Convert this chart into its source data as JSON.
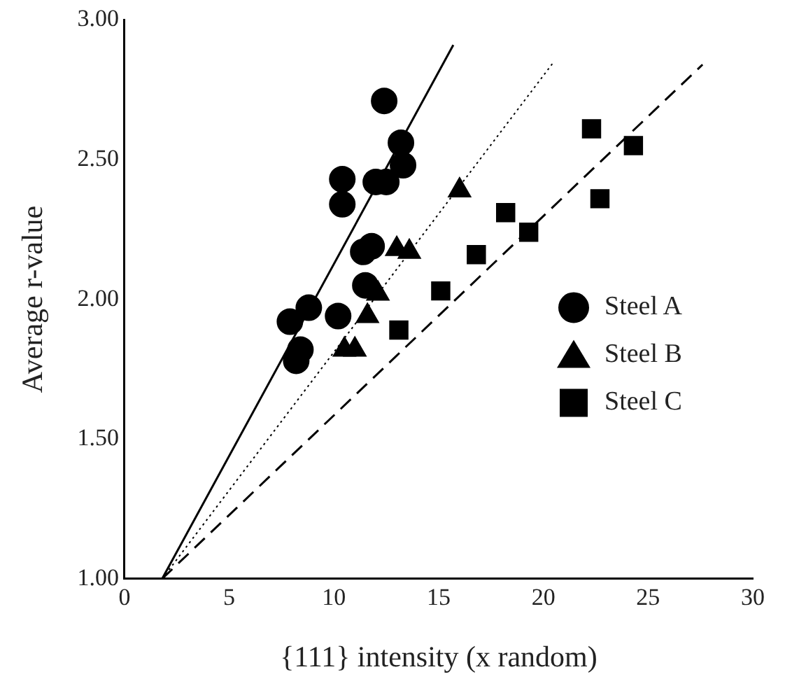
{
  "chart_data": {
    "type": "scatter",
    "xlabel": "{111} intensity (x random)",
    "ylabel": "Average r-value",
    "xlim": [
      0,
      30
    ],
    "xticks": [
      0,
      5,
      10,
      15,
      20,
      25,
      30
    ],
    "ylim": [
      1,
      3
    ],
    "yticks": [
      {
        "value": 1,
        "label": "1.00"
      },
      {
        "value": 1.5,
        "label": "1.50"
      },
      {
        "value": 2,
        "label": "2.00"
      },
      {
        "value": 2.5,
        "label": "2.50"
      },
      {
        "value": 3,
        "label": "3.00"
      }
    ],
    "grid": false,
    "legend": "right",
    "series": [
      {
        "name": "Steel A",
        "color": "#000000",
        "marker": "circle",
        "x": [
          12.4,
          13.2,
          13.3,
          10.4,
          10.4,
          12.0,
          12.5,
          11.8,
          11.4,
          11.5,
          8.8,
          7.9,
          10.2,
          8.4,
          8.2
        ],
        "values": [
          2.71,
          2.56,
          2.48,
          2.43,
          2.34,
          2.42,
          2.42,
          2.19,
          2.17,
          2.05,
          1.97,
          1.92,
          1.94,
          1.82,
          1.78
        ]
      },
      {
        "name": "Steel B",
        "color": "#000000",
        "marker": "triangle",
        "x": [
          16.0,
          13.6,
          13.0,
          12.1,
          11.6,
          10.5,
          11.0
        ],
        "values": [
          2.39,
          2.17,
          2.18,
          2.02,
          1.94,
          1.82,
          1.82
        ]
      },
      {
        "name": "Steel C",
        "color": "#000000",
        "marker": "square",
        "x": [
          22.3,
          24.3,
          22.7,
          18.2,
          19.3,
          16.8,
          15.1,
          13.1
        ],
        "values": [
          2.61,
          2.55,
          2.36,
          2.31,
          2.24,
          2.16,
          2.03,
          1.89
        ]
      },
      {
        "type": "line",
        "color": "#000000",
        "line_style": "solid",
        "marker": "none",
        "x": [
          1.8,
          15.7
        ],
        "values": [
          1.0,
          2.91
        ]
      },
      {
        "type": "line",
        "color": "#000000",
        "line_style": "dotted",
        "marker": "none",
        "x": [
          1.8,
          20.5
        ],
        "values": [
          1.0,
          2.85
        ]
      },
      {
        "type": "line",
        "color": "#000000",
        "line_style": "dashed",
        "marker": "none",
        "x": [
          1.8,
          27.6
        ],
        "values": [
          1.0,
          2.84
        ]
      }
    ]
  }
}
